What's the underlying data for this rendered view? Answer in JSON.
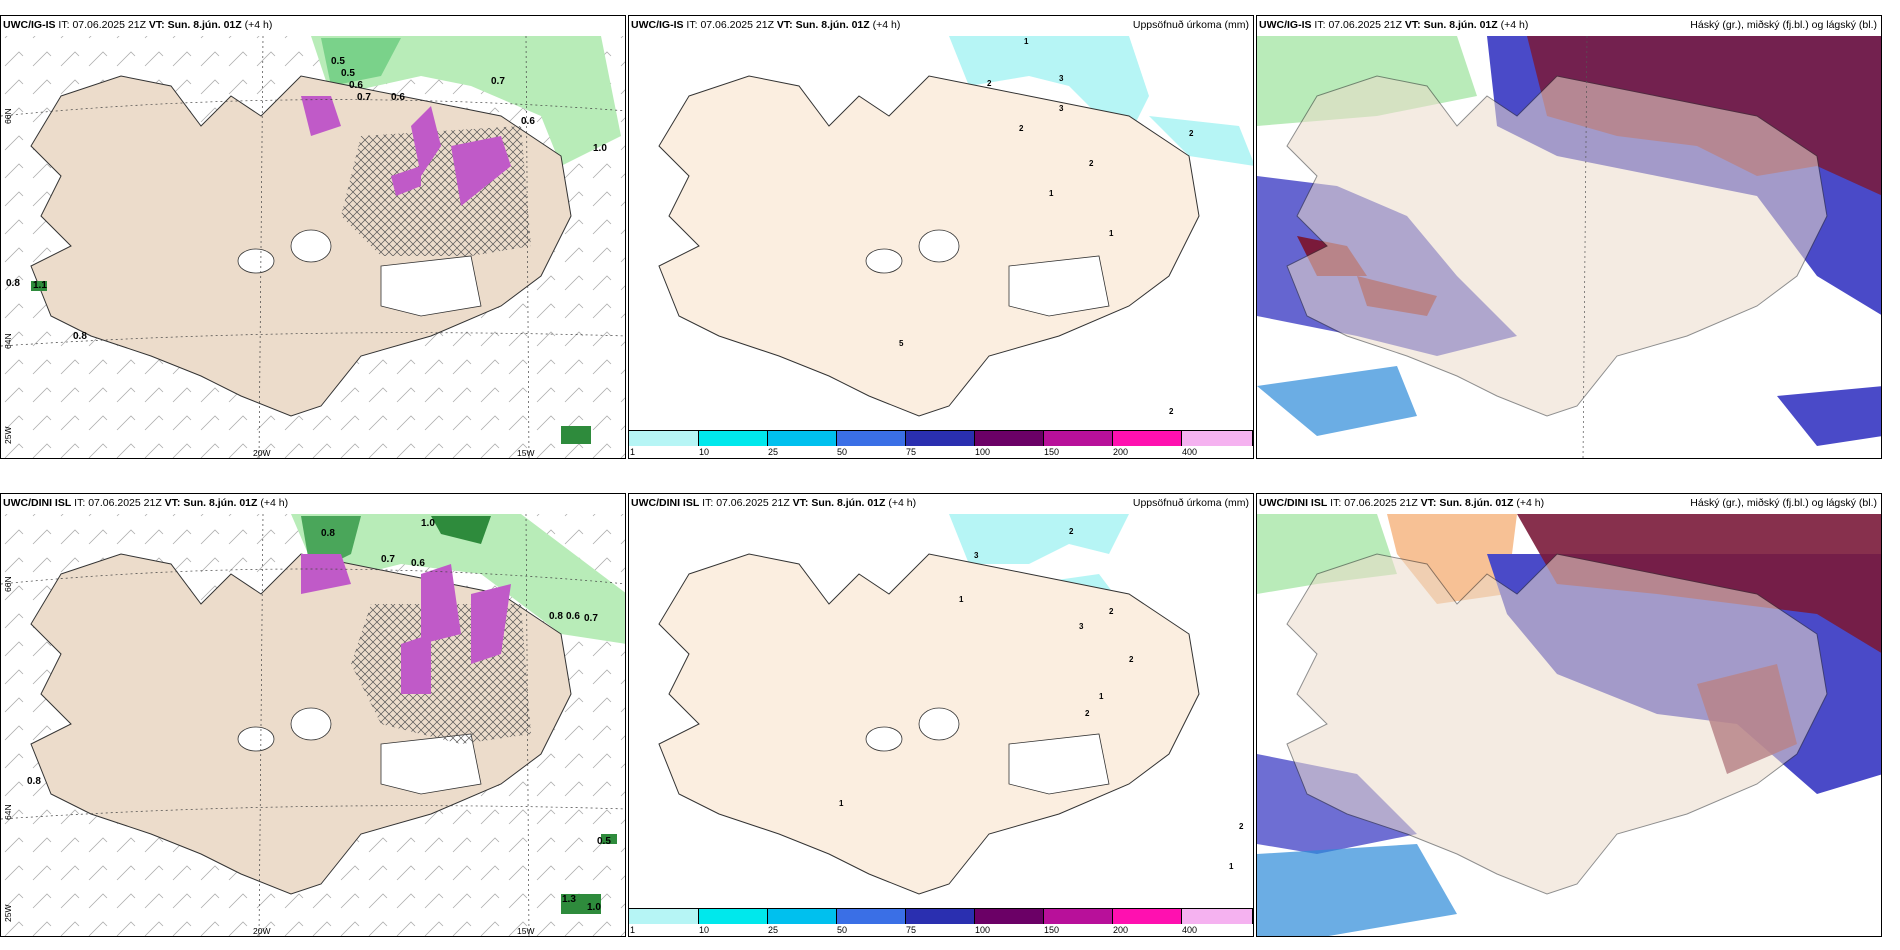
{
  "rows": [
    {
      "model": "UWC/IG-IS",
      "it_label": "IT:",
      "it_value": "07.06.2025 21Z",
      "vt_label": "VT:",
      "vt_value": "Sun. 8.jún. 01Z",
      "lead": "(+4 h)"
    },
    {
      "model": "UWC/DINI ISL",
      "it_label": "IT:",
      "it_value": "07.06.2025 21Z",
      "vt_label": "VT:",
      "vt_value": "Sun. 8.jún. 01Z",
      "lead": "(+4 h)"
    }
  ],
  "precip_title": "Uppsöfnuð úrkoma (mm)",
  "cloud_title": "Háský (gr.), miðský (fj.bl.) og lágský (bl.)",
  "axis_labels": {
    "lat66": "66N",
    "lat64": "64N",
    "lon25": "25W",
    "lon20": "20W",
    "lon15": "15W"
  },
  "colorbar": {
    "ticks": [
      "1",
      "10",
      "25",
      "50",
      "75",
      "100",
      "150",
      "200",
      "400"
    ],
    "colors": [
      "#b6f5f5",
      "#00e8ec",
      "#00c0ee",
      "#3a6fe6",
      "#2a2fb0",
      "#6b0066",
      "#b8109a",
      "#ff10b0",
      "#f5b2f0"
    ]
  },
  "colors": {
    "land": "#ecdccb",
    "land_light": "#fbeee0",
    "precip_light": "#b6f5f5",
    "vis_green": "#9be39b",
    "vis_dark": "#2e8b3c",
    "purple": "#c05ac8",
    "high_cloud": "#7a1a3a",
    "mid_cloud": "#4a4ac8",
    "low_cloud": "#2c8ad8"
  },
  "numbers_top_left": [
    "0.5",
    "0.5",
    "0.6",
    "0.7",
    "0.6",
    "0.7",
    "0.6",
    "1.0",
    "0.8",
    "1.1",
    "0.8"
  ],
  "numbers_bottom_left": [
    "0.8",
    "1.0",
    "0.7",
    "0.6",
    "0.8",
    "0.6",
    "0.7",
    "0.8",
    "0.5",
    "1.3",
    "1.0"
  ],
  "numbers_top_mid": [
    "1",
    "2",
    "3",
    "2",
    "3",
    "1",
    "2",
    "2",
    "1",
    "5",
    "2"
  ],
  "numbers_bottom_mid": [
    "3",
    "2",
    "1",
    "2",
    "3",
    "1",
    "2",
    "2",
    "1",
    "2",
    "1"
  ]
}
